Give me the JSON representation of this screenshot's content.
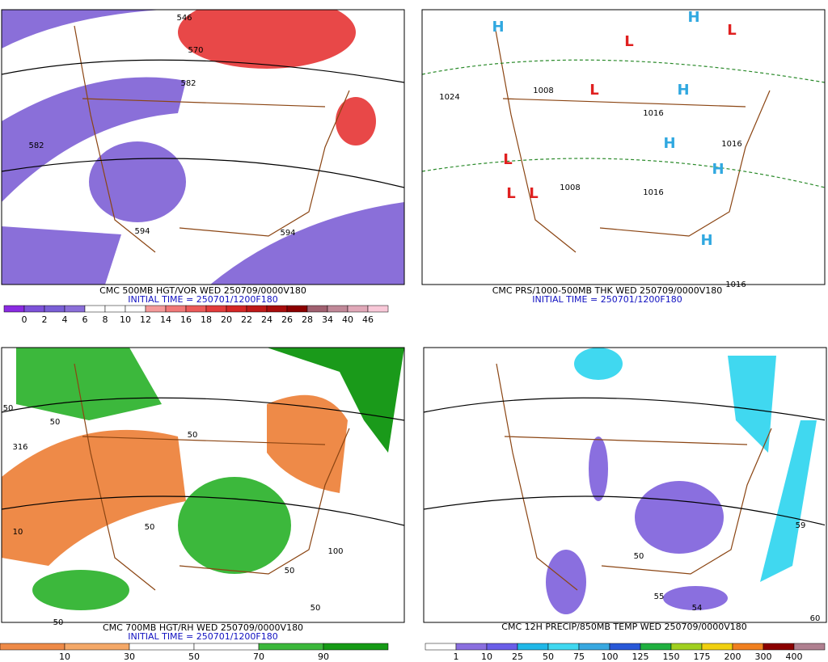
{
  "panels": [
    {
      "caption": "CMC 500MB HGT/VOR WED 250709/0000V180",
      "initial_time": "INITIAL TIME = 250701/1200F180",
      "colorbar": {
        "labels": [
          0,
          2,
          4,
          6,
          8,
          10,
          12,
          14,
          16,
          18,
          20,
          22,
          24,
          26,
          28,
          34,
          40,
          46
        ],
        "colors": [
          "#8a2be2",
          "#7d52d9",
          "#7a5fd6",
          "#8b6fd9",
          "#ffffff",
          "#ffffff",
          "#ffffff",
          "#f49a9a",
          "#f07878",
          "#eb5a5a",
          "#e23c3c",
          "#d42626",
          "#be1818",
          "#a80c0c",
          "#8b0000",
          "#a06070",
          "#c08898",
          "#e0a8b8",
          "#f8c8d8"
        ]
      },
      "map_labels": [
        "546",
        "570",
        "582",
        "582",
        "594",
        "594"
      ]
    },
    {
      "caption": "CMC PRS/1000-500MB THK WED 250709/0000V180",
      "initial_time": "INITIAL TIME = 250701/1200F180",
      "map_labels": [
        "1024",
        "1008",
        "1008",
        "1016",
        "1016",
        "1016",
        "1016",
        "H",
        "H",
        "H",
        "H",
        "H",
        "H",
        "L",
        "L",
        "L",
        "L",
        "L",
        "L"
      ]
    },
    {
      "caption": "CMC 700MB HGT/RH WED 250709/0000V180",
      "initial_time": "INITIAL TIME = 250701/1200F180",
      "colorbar": {
        "labels": [
          10,
          30,
          50,
          70,
          90
        ],
        "colors": [
          "#ee8a48",
          "#f4a868",
          "#ffffff",
          "#ffffff",
          "#3cb83c",
          "#169a16"
        ]
      },
      "map_labels": [
        "50",
        "50",
        "316",
        "10",
        "50",
        "50",
        "50",
        "50",
        "100",
        "50"
      ]
    },
    {
      "caption": "CMC 12H PRECIP/850MB TEMP WED 250709/0000V180",
      "colorbar": {
        "labels": [
          1,
          10,
          25,
          50,
          75,
          100,
          125,
          150,
          175,
          200,
          300,
          400
        ],
        "colors": [
          "#ffffff",
          "#8a6fdf",
          "#6a5ee8",
          "#20b8e8",
          "#40d8f0",
          "#38a8e0",
          "#2858d8",
          "#20b040",
          "#a0d020",
          "#f0d010",
          "#f08020",
          "#8b0000",
          "#b08090"
        ]
      },
      "map_labels": [
        "55",
        "54",
        "60",
        "59",
        "50"
      ]
    }
  ]
}
